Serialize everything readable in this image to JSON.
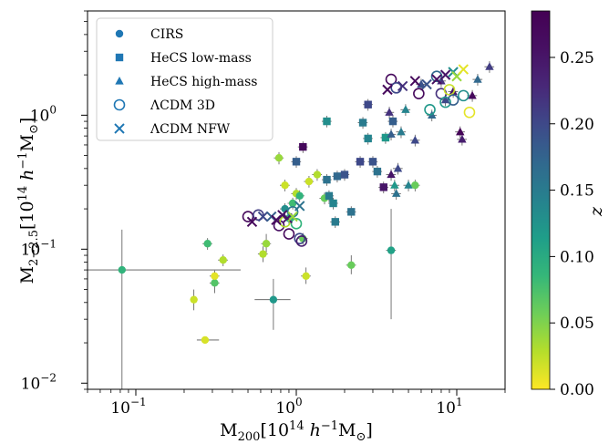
{
  "chart_data": {
    "type": "scatter",
    "x_scale": "log",
    "y_scale": "log",
    "xlim": [
      0.05,
      20
    ],
    "ylim": [
      0.009,
      6
    ],
    "x_ticks": [
      {
        "value": 0.1,
        "base": "10",
        "exp": "−1"
      },
      {
        "value": 1,
        "base": "10",
        "exp": "0"
      },
      {
        "value": 10,
        "base": "10",
        "exp": "1"
      }
    ],
    "y_ticks": [
      {
        "value": 0.01,
        "base": "10",
        "exp": "−2"
      },
      {
        "value": 0.1,
        "base": "10",
        "exp": "−1"
      },
      {
        "value": 1,
        "base": "10",
        "exp": "0"
      }
    ],
    "xlabel": {
      "main": "M",
      "sub": "200",
      "rest": "[10",
      "sup": "14",
      "h": " h",
      "hsup": "−1",
      "end": "M",
      "odot": "⊙",
      "close": "]"
    },
    "ylabel": {
      "main": "M",
      "sub": "2−2.5",
      "rest": "[10",
      "sup": "14",
      "h": " h",
      "hsup": "−1",
      "end": "M",
      "odot": "⊙",
      "close": "]"
    },
    "colorbar": {
      "label": "z",
      "range": [
        0,
        0.285
      ],
      "ticks": [
        "0.00",
        "0.05",
        "0.10",
        "0.15",
        "0.20",
        "0.25"
      ],
      "tick_values": [
        0,
        0.05,
        0.1,
        0.15,
        0.2,
        0.25
      ],
      "colormap": "viridis_r"
    },
    "legend": {
      "position": "upper-left",
      "entries": [
        {
          "label": "CIRS",
          "marker": "circle-filled"
        },
        {
          "label": "HeCS low-mass",
          "marker": "square-filled"
        },
        {
          "label": "HeCS high-mass",
          "marker": "triangle-filled"
        },
        {
          "label": "ΛCDM 3D",
          "marker": "circle-open"
        },
        {
          "label": "ΛCDM NFW",
          "marker": "x"
        }
      ],
      "color": "#1f77b4"
    },
    "series": [
      {
        "name": "CIRS",
        "marker": "circle",
        "points": [
          {
            "x": 0.082,
            "y": 0.07,
            "z": 0.09,
            "xlo": 0.05,
            "xhi": 0.45,
            "ylo": 0.009,
            "yhi": 0.14
          },
          {
            "x": 0.23,
            "y": 0.042,
            "z": 0.02,
            "xlo": 0.225,
            "xhi": 0.235,
            "ylo": 0.035,
            "yhi": 0.05
          },
          {
            "x": 0.27,
            "y": 0.021,
            "z": 0.015,
            "xlo": 0.24,
            "xhi": 0.33,
            "ylo": 0.02,
            "yhi": 0.022
          },
          {
            "x": 0.28,
            "y": 0.11,
            "z": 0.08
          },
          {
            "x": 0.31,
            "y": 0.056,
            "z": 0.07,
            "ylo": 0.047,
            "yhi": 0.068
          },
          {
            "x": 0.31,
            "y": 0.063,
            "z": 0.01
          },
          {
            "x": 0.35,
            "y": 0.083,
            "z": 0.03
          },
          {
            "x": 0.62,
            "y": 0.092,
            "z": 0.03,
            "ylo": 0.08,
            "yhi": 0.105
          },
          {
            "x": 0.65,
            "y": 0.11,
            "z": 0.04,
            "ylo": 0.09,
            "yhi": 0.13
          },
          {
            "x": 0.72,
            "y": 0.042,
            "z": 0.12,
            "xlo": 0.55,
            "xhi": 0.92,
            "ylo": 0.025,
            "yhi": 0.06
          },
          {
            "x": 0.78,
            "y": 0.48,
            "z": 0.04,
            "ylo": 0.43,
            "yhi": 0.53
          },
          {
            "x": 0.85,
            "y": 0.3,
            "z": 0.02
          },
          {
            "x": 0.85,
            "y": 0.2,
            "z": 0.13
          },
          {
            "x": 0.9,
            "y": 0.17,
            "z": 0.1
          },
          {
            "x": 0.95,
            "y": 0.22,
            "z": 0.08
          },
          {
            "x": 1.0,
            "y": 0.26,
            "z": 0.03
          },
          {
            "x": 1.05,
            "y": 0.25,
            "z": 0.09
          },
          {
            "x": 1.1,
            "y": 0.12,
            "z": 0.06
          },
          {
            "x": 1.15,
            "y": 0.063,
            "z": 0.02,
            "ylo": 0.055,
            "yhi": 0.073
          },
          {
            "x": 1.2,
            "y": 0.32,
            "z": 0.02
          },
          {
            "x": 1.35,
            "y": 0.36,
            "z": 0.03
          },
          {
            "x": 1.5,
            "y": 0.24,
            "z": 0.06
          },
          {
            "x": 2.2,
            "y": 0.076,
            "z": 0.06,
            "ylo": 0.065,
            "yhi": 0.09
          },
          {
            "x": 3.9,
            "y": 0.098,
            "z": 0.11,
            "ylo": 0.03,
            "yhi": 0.2
          },
          {
            "x": 5.5,
            "y": 0.3,
            "z": 0.06
          }
        ]
      },
      {
        "name": "HeCS low-mass",
        "marker": "square",
        "points": [
          {
            "x": 1.0,
            "y": 0.45,
            "z": 0.18
          },
          {
            "x": 1.1,
            "y": 0.58,
            "z": 0.27
          },
          {
            "x": 1.55,
            "y": 0.9,
            "z": 0.13
          },
          {
            "x": 1.55,
            "y": 0.33,
            "z": 0.16
          },
          {
            "x": 1.6,
            "y": 0.25,
            "z": 0.15
          },
          {
            "x": 1.7,
            "y": 0.22,
            "z": 0.14
          },
          {
            "x": 1.75,
            "y": 0.16,
            "z": 0.15
          },
          {
            "x": 1.8,
            "y": 0.35,
            "z": 0.17
          },
          {
            "x": 2.0,
            "y": 0.36,
            "z": 0.19
          },
          {
            "x": 2.2,
            "y": 0.19,
            "z": 0.16
          },
          {
            "x": 2.5,
            "y": 0.45,
            "z": 0.2
          },
          {
            "x": 2.6,
            "y": 0.88,
            "z": 0.15
          },
          {
            "x": 2.8,
            "y": 1.2,
            "z": 0.2
          },
          {
            "x": 2.8,
            "y": 0.67,
            "z": 0.14
          },
          {
            "x": 3.0,
            "y": 0.45,
            "z": 0.19
          },
          {
            "x": 3.2,
            "y": 0.38,
            "z": 0.16
          },
          {
            "x": 3.5,
            "y": 0.29,
            "z": 0.25
          },
          {
            "x": 3.6,
            "y": 0.68,
            "z": 0.12
          },
          {
            "x": 4.0,
            "y": 0.9,
            "z": 0.18
          }
        ]
      },
      {
        "name": "HeCS high-mass",
        "marker": "triangle",
        "points": [
          {
            "x": 3.8,
            "y": 1.05,
            "z": 0.22
          },
          {
            "x": 3.9,
            "y": 0.72,
            "z": 0.18
          },
          {
            "x": 3.9,
            "y": 0.36,
            "z": 0.25
          },
          {
            "x": 4.1,
            "y": 0.3,
            "z": 0.12
          },
          {
            "x": 4.2,
            "y": 0.26,
            "z": 0.16
          },
          {
            "x": 4.3,
            "y": 0.4,
            "z": 0.2
          },
          {
            "x": 4.5,
            "y": 0.75,
            "z": 0.15
          },
          {
            "x": 4.8,
            "y": 1.1,
            "z": 0.14
          },
          {
            "x": 5.0,
            "y": 0.3,
            "z": 0.14
          },
          {
            "x": 5.5,
            "y": 0.65,
            "z": 0.2
          },
          {
            "x": 6.0,
            "y": 1.7,
            "z": 0.19
          },
          {
            "x": 7.0,
            "y": 1.0,
            "z": 0.17
          },
          {
            "x": 8.0,
            "y": 1.8,
            "z": 0.22
          },
          {
            "x": 8.5,
            "y": 1.3,
            "z": 0.2
          },
          {
            "x": 9.5,
            "y": 1.5,
            "z": 0.25
          },
          {
            "x": 10.5,
            "y": 0.75,
            "z": 0.28
          },
          {
            "x": 10.8,
            "y": 0.66,
            "z": 0.24
          },
          {
            "x": 12.5,
            "y": 1.4,
            "z": 0.27
          },
          {
            "x": 13.5,
            "y": 1.85,
            "z": 0.17
          },
          {
            "x": 16.0,
            "y": 2.3,
            "z": 0.21
          }
        ]
      },
      {
        "name": "ΛCDM 3D",
        "marker": "circle-open",
        "points": [
          {
            "x": 0.5,
            "y": 0.175,
            "z": 0.27
          },
          {
            "x": 0.58,
            "y": 0.18,
            "z": 0.21
          },
          {
            "x": 0.78,
            "y": 0.15,
            "z": 0.26
          },
          {
            "x": 0.85,
            "y": 0.16,
            "z": 0.03
          },
          {
            "x": 0.9,
            "y": 0.13,
            "z": 0.27
          },
          {
            "x": 0.95,
            "y": 0.19,
            "z": 0.15
          },
          {
            "x": 1.0,
            "y": 0.155,
            "z": 0.09
          },
          {
            "x": 1.05,
            "y": 0.12,
            "z": 0.2
          },
          {
            "x": 1.08,
            "y": 0.115,
            "z": 0.24
          },
          {
            "x": 3.9,
            "y": 1.85,
            "z": 0.27
          },
          {
            "x": 4.2,
            "y": 1.6,
            "z": 0.2
          },
          {
            "x": 5.8,
            "y": 1.45,
            "z": 0.27
          },
          {
            "x": 6.8,
            "y": 1.1,
            "z": 0.12
          },
          {
            "x": 7.5,
            "y": 1.95,
            "z": 0.17
          },
          {
            "x": 8.0,
            "y": 1.45,
            "z": 0.22
          },
          {
            "x": 8.5,
            "y": 1.25,
            "z": 0.12
          },
          {
            "x": 9.0,
            "y": 1.55,
            "z": 0.02
          },
          {
            "x": 9.5,
            "y": 1.3,
            "z": 0.18
          },
          {
            "x": 11.0,
            "y": 1.4,
            "z": 0.13
          },
          {
            "x": 12.0,
            "y": 1.05,
            "z": 0.01
          }
        ]
      },
      {
        "name": "ΛCDM NFW",
        "marker": "x",
        "points": [
          {
            "x": 0.53,
            "y": 0.16,
            "z": 0.27
          },
          {
            "x": 0.62,
            "y": 0.175,
            "z": 0.2
          },
          {
            "x": 0.7,
            "y": 0.175,
            "z": 0.18
          },
          {
            "x": 0.75,
            "y": 0.165,
            "z": 0.27
          },
          {
            "x": 0.82,
            "y": 0.18,
            "z": 0.26
          },
          {
            "x": 0.88,
            "y": 0.17,
            "z": 0.25
          },
          {
            "x": 0.95,
            "y": 0.175,
            "z": 0.04
          },
          {
            "x": 1.05,
            "y": 0.21,
            "z": 0.16
          },
          {
            "x": 3.7,
            "y": 1.55,
            "z": 0.27
          },
          {
            "x": 4.6,
            "y": 1.65,
            "z": 0.22
          },
          {
            "x": 5.5,
            "y": 1.8,
            "z": 0.27
          },
          {
            "x": 6.5,
            "y": 1.7,
            "z": 0.19
          },
          {
            "x": 7.5,
            "y": 1.85,
            "z": 0.26
          },
          {
            "x": 8.5,
            "y": 2.0,
            "z": 0.25
          },
          {
            "x": 9.5,
            "y": 2.1,
            "z": 0.13
          },
          {
            "x": 10.0,
            "y": 1.95,
            "z": 0.04
          },
          {
            "x": 11.0,
            "y": 2.2,
            "z": 0.01
          }
        ]
      }
    ]
  }
}
